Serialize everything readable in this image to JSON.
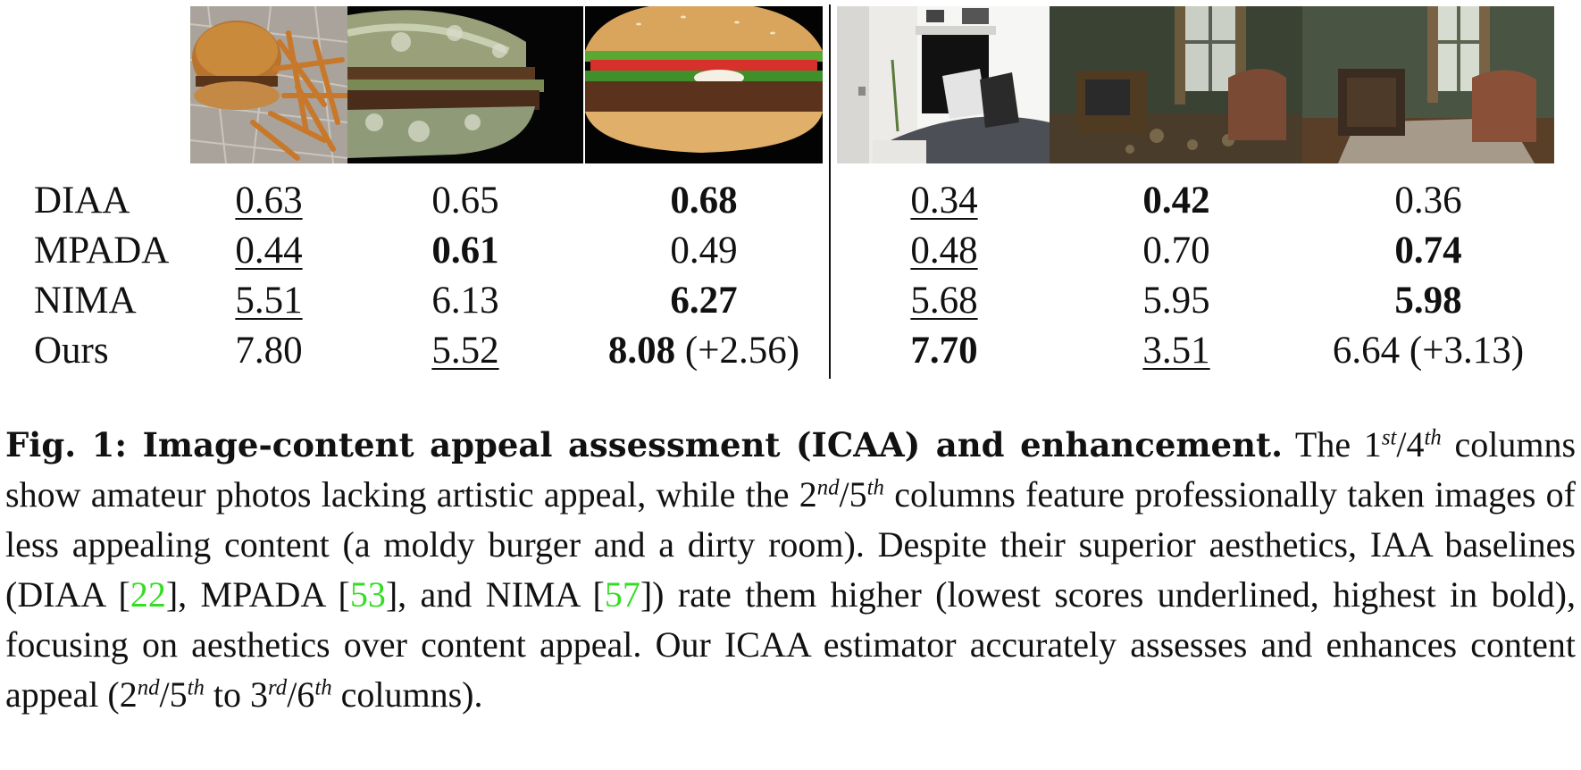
{
  "table": {
    "rows": [
      {
        "label": "DIAA",
        "cells": [
          "0.63",
          "0.65",
          "0.68",
          "0.34",
          "0.42",
          "0.36"
        ]
      },
      {
        "label": "MPADA",
        "cells": [
          "0.44",
          "0.61",
          "0.49",
          "0.48",
          "0.70",
          "0.74"
        ]
      },
      {
        "label": "NIMA",
        "cells": [
          "5.51",
          "6.13",
          "6.27",
          "5.68",
          "5.95",
          "5.98"
        ]
      },
      {
        "label": "Ours",
        "cells": [
          "7.80",
          "5.52",
          "8.08",
          "7.70",
          "3.51",
          "6.64"
        ],
        "gains": {
          "col3": "(+2.56)",
          "col6": "(+3.13)"
        }
      }
    ]
  },
  "caption": {
    "lead": "Fig. 1: Image-content appeal assessment (ICAA) and enhancement.",
    "t1": " The 1",
    "s1": "st",
    "t2": "/4",
    "s2": "th",
    "t3": " columns show amateur photos lacking artistic appeal, while the 2",
    "s3": "nd",
    "t4": "/5",
    "s4": "th",
    "t5": " columns feature professionally taken images of less appealing content (a moldy burger and a dirty room). Despite their superior aesthetics, IAA baselines (DIAA [",
    "c1": "22",
    "t6": "], MPADA [",
    "c2": "53",
    "t7": "], and NIMA [",
    "c3": "57",
    "t8": "]) rate them higher (lowest scores underlined, highest in bold), focusing on aesthetics over content appeal. Our ICAA estimator accurately assesses and enhances content appeal (2",
    "s5": "nd",
    "t9": "/5",
    "s6": "th",
    "t10": " to 3",
    "s7": "rd",
    "t11": "/6",
    "s8": "th",
    "t12": " columns)."
  }
}
